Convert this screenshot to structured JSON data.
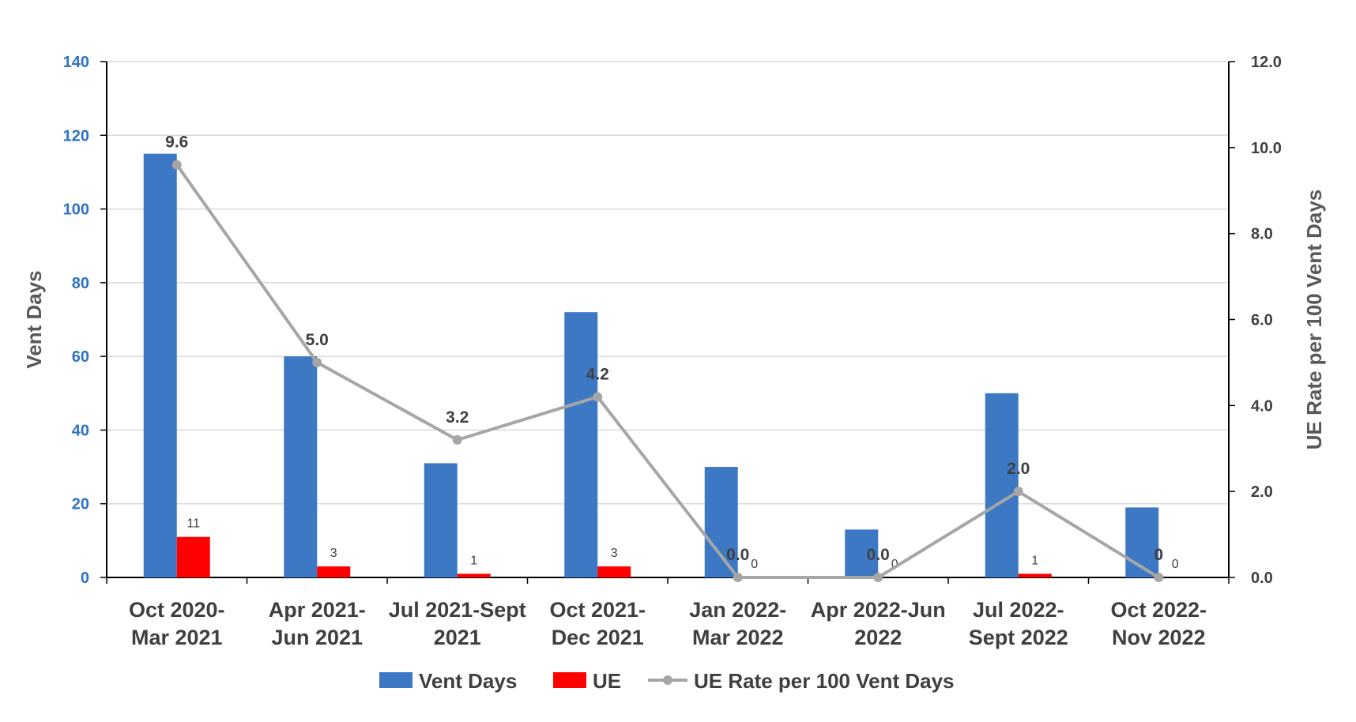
{
  "chart_data": {
    "type": "bar",
    "categories": [
      [
        "Oct 2020-",
        "Mar 2021"
      ],
      [
        "Apr 2021-",
        "Jun 2021"
      ],
      [
        "Jul 2021-Sept",
        "2021"
      ],
      [
        "Oct 2021-",
        "Dec 2021"
      ],
      [
        "Jan 2022-",
        "Mar 2022"
      ],
      [
        "Apr 2022-Jun",
        "2022"
      ],
      [
        "Jul 2022-",
        "Sept 2022"
      ],
      [
        "Oct 2022-",
        "Nov 2022"
      ]
    ],
    "series": [
      {
        "name": "Vent Days",
        "type": "bar",
        "axis": "left",
        "color": "#3c78c4",
        "values": [
          115,
          60,
          31,
          72,
          30,
          13,
          50,
          19
        ]
      },
      {
        "name": "UE",
        "type": "bar",
        "axis": "left",
        "color": "#ff0000",
        "values": [
          11,
          3,
          1,
          3,
          0,
          0,
          1,
          0
        ],
        "labels": [
          "11",
          "3",
          "1",
          "3",
          "0",
          "0",
          "1",
          "0"
        ]
      },
      {
        "name": "UE Rate per 100 Vent Days",
        "type": "line",
        "axis": "right",
        "color": "#a6a6a6",
        "values": [
          9.6,
          5.0,
          3.2,
          4.2,
          0.0,
          0.0,
          2.0,
          0.0
        ],
        "labels": [
          "9.6",
          "5.0",
          "3.2",
          "4.2",
          "0.0",
          "0.0",
          "2.0",
          "0"
        ]
      }
    ],
    "ylabel": "Vent Days",
    "ylabel_right": "UE Rate per 100 Vent Days",
    "ylim": [
      0,
      140
    ],
    "yticks": [
      "0",
      "20",
      "40",
      "60",
      "80",
      "100",
      "120",
      "140"
    ],
    "ylim_right": [
      0,
      12
    ],
    "yticks_right": [
      "0.0",
      "2.0",
      "4.0",
      "6.0",
      "8.0",
      "10.0",
      "12.0"
    ],
    "grid": true,
    "legend": "bottom",
    "legend_entries": [
      "Vent Days",
      "UE",
      "UE Rate per 100 Vent Days"
    ]
  }
}
